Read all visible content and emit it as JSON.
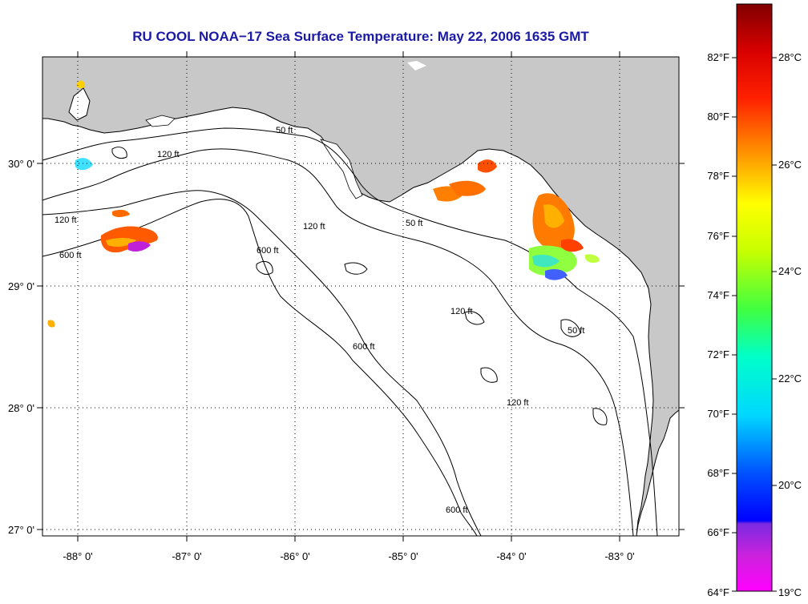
{
  "title": "RU COOL  NOAA−17  Sea Surface Temperature:  May 22, 2006 1635 GMT",
  "colors": {
    "land": "#c8c8c8",
    "ocean": "#ffffff",
    "title": "#1a1aa6"
  },
  "lon_labels": [
    "-88° 0'",
    "-87° 0'",
    "-86° 0'",
    "-85° 0'",
    "-84° 0'",
    "-83° 0'"
  ],
  "lat_labels": [
    "30° 0'",
    "29° 0'",
    "28° 0'",
    "27° 0'"
  ],
  "contour_labels": {
    "c50a": "50 ft",
    "c50b": "50 ft",
    "c50c": "50 ft",
    "c120a": "120 ft",
    "c120b": "120 ft",
    "c120c": "120 ft",
    "c120d": "120 ft",
    "c120e": "120 ft",
    "c600a": "600 ft",
    "c600b": "600 ft",
    "c600c": "600 ft",
    "c600d": "600 ft"
  },
  "colorbar": {
    "fahrenheit": [
      "82°F",
      "80°F",
      "78°F",
      "76°F",
      "74°F",
      "72°F",
      "70°F",
      "68°F",
      "66°F",
      "64°F"
    ],
    "celsius": [
      "28°C",
      "26°C",
      "24°C",
      "22°C",
      "20°C",
      "19°C"
    ]
  }
}
